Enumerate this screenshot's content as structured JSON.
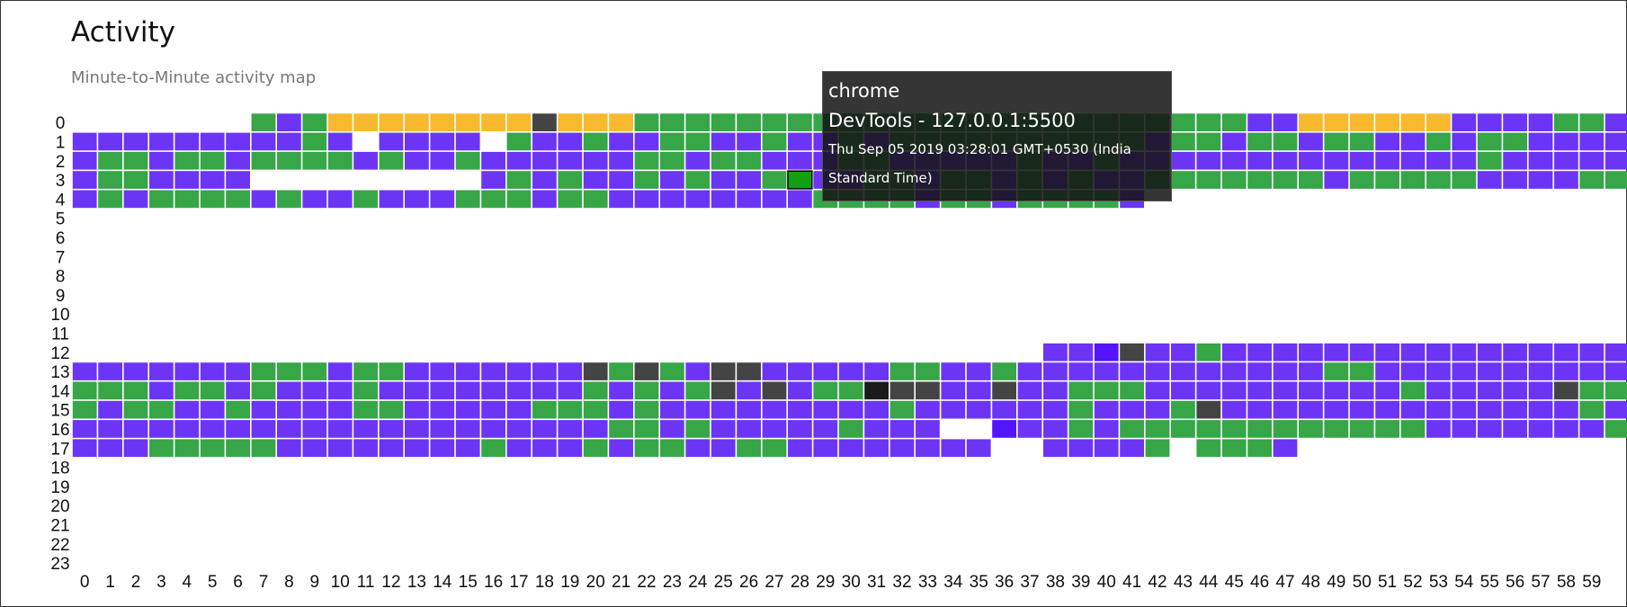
{
  "header": {
    "title": "Activity",
    "subtitle": "Minute-to-Minute activity map"
  },
  "tooltip": {
    "app": "chrome",
    "window_title": "DevTools - 127.0.0.1:5500",
    "timestamp": "Thu Sep 05 2019 03:28:01 GMT+0530 (India Standard Time)"
  },
  "colors": {
    "P": "#6c35f5",
    "G": "#36a647",
    "O": "#f8b92e",
    "D": "#444444",
    "K": "#1a1a1a",
    "V": "#5414ff",
    "H": "#10a011"
  },
  "chart_data": {
    "type": "heatmap",
    "title": "Activity",
    "subtitle": "Minute-to-Minute activity map",
    "x_categories": [
      0,
      1,
      2,
      3,
      4,
      5,
      6,
      7,
      8,
      9,
      10,
      11,
      12,
      13,
      14,
      15,
      16,
      17,
      18,
      19,
      20,
      21,
      22,
      23,
      24,
      25,
      26,
      27,
      28,
      29,
      30,
      31,
      32,
      33,
      34,
      35,
      36,
      37,
      38,
      39,
      40,
      41,
      42,
      43,
      44,
      45,
      46,
      47,
      48,
      49,
      50,
      51,
      52,
      53,
      54,
      55,
      56,
      57,
      58,
      59
    ],
    "y_categories": [
      0,
      1,
      2,
      3,
      4,
      5,
      6,
      7,
      8,
      9,
      10,
      11,
      12,
      13,
      14,
      15,
      16,
      17,
      18,
      19,
      20,
      21,
      22,
      23
    ],
    "legend_codes": {
      "P": "purple activity",
      "G": "green activity",
      "O": "orange activity",
      "D": "dark gray activity",
      "K": "near-black activity",
      "V": "bright violet activity",
      "H": "highlighted cell",
      ".": "no activity"
    },
    "highlighted": {
      "hour": 3,
      "minute": 28
    },
    "rows": [
      ".......GPGOOOOOOOODOOOGGGGGGGGGGGGGGGGGGGGGGGGPPOOOOOOPPPPGGPP",
      "PPPPPPPPPGP.PPPP.GPPGPPGGPPGPPGPGGGGGGGGGGPGGPGGPGGPPGPGGPPPP",
      "PGGPGGPGGGGPGPPGPPPPPPGGPGGPPPGGPPPPPGPPGPPPPPPPPPPPPPPGPPPPPG",
      "PGGPPPP.........PGPGPPGPGPPGPPPGGPGGPGPGPPGGGGGGGPGGGGGPPPPGGP",
      "PGPGGGGPGPPGPPPGGGPGGPPPPPPPPGGGGPGGPGGGGP",
      "",
      "",
      "",
      "",
      "",
      "",
      "",
      "......................................PPVDPPGPPPPPPPPPPPPPPPPP",
      "PPPPPPPGGGPGGPPPPPPPDGDGPDDPPPPPGGPPGPPPPPPPPPPPPGGPPPPPPPPPPP",
      "GGGPGGPGPPPGPPPPPPPPGPGPGDPDPGGKDDPPDPPGGGPPPPPPPPPPGPPPPPDGGG",
      "GPGGPPGPPPPGGPPPPPGGGPGPPPPPPPPPGPPPPPPGPPPGDPPPPPPPPPPPPPPGPP",
      "PPPPPPPPPPPPPPPPPPPPPGGPGPPPPPGPPP..VPPGPGGGGGGGGGGGGPPPPPPPGP",
      "PPPGGGGGPPPPPPPPGPPPGPGGPPGGPPPPPPPP..PPPPG.GGGP"
    ]
  }
}
